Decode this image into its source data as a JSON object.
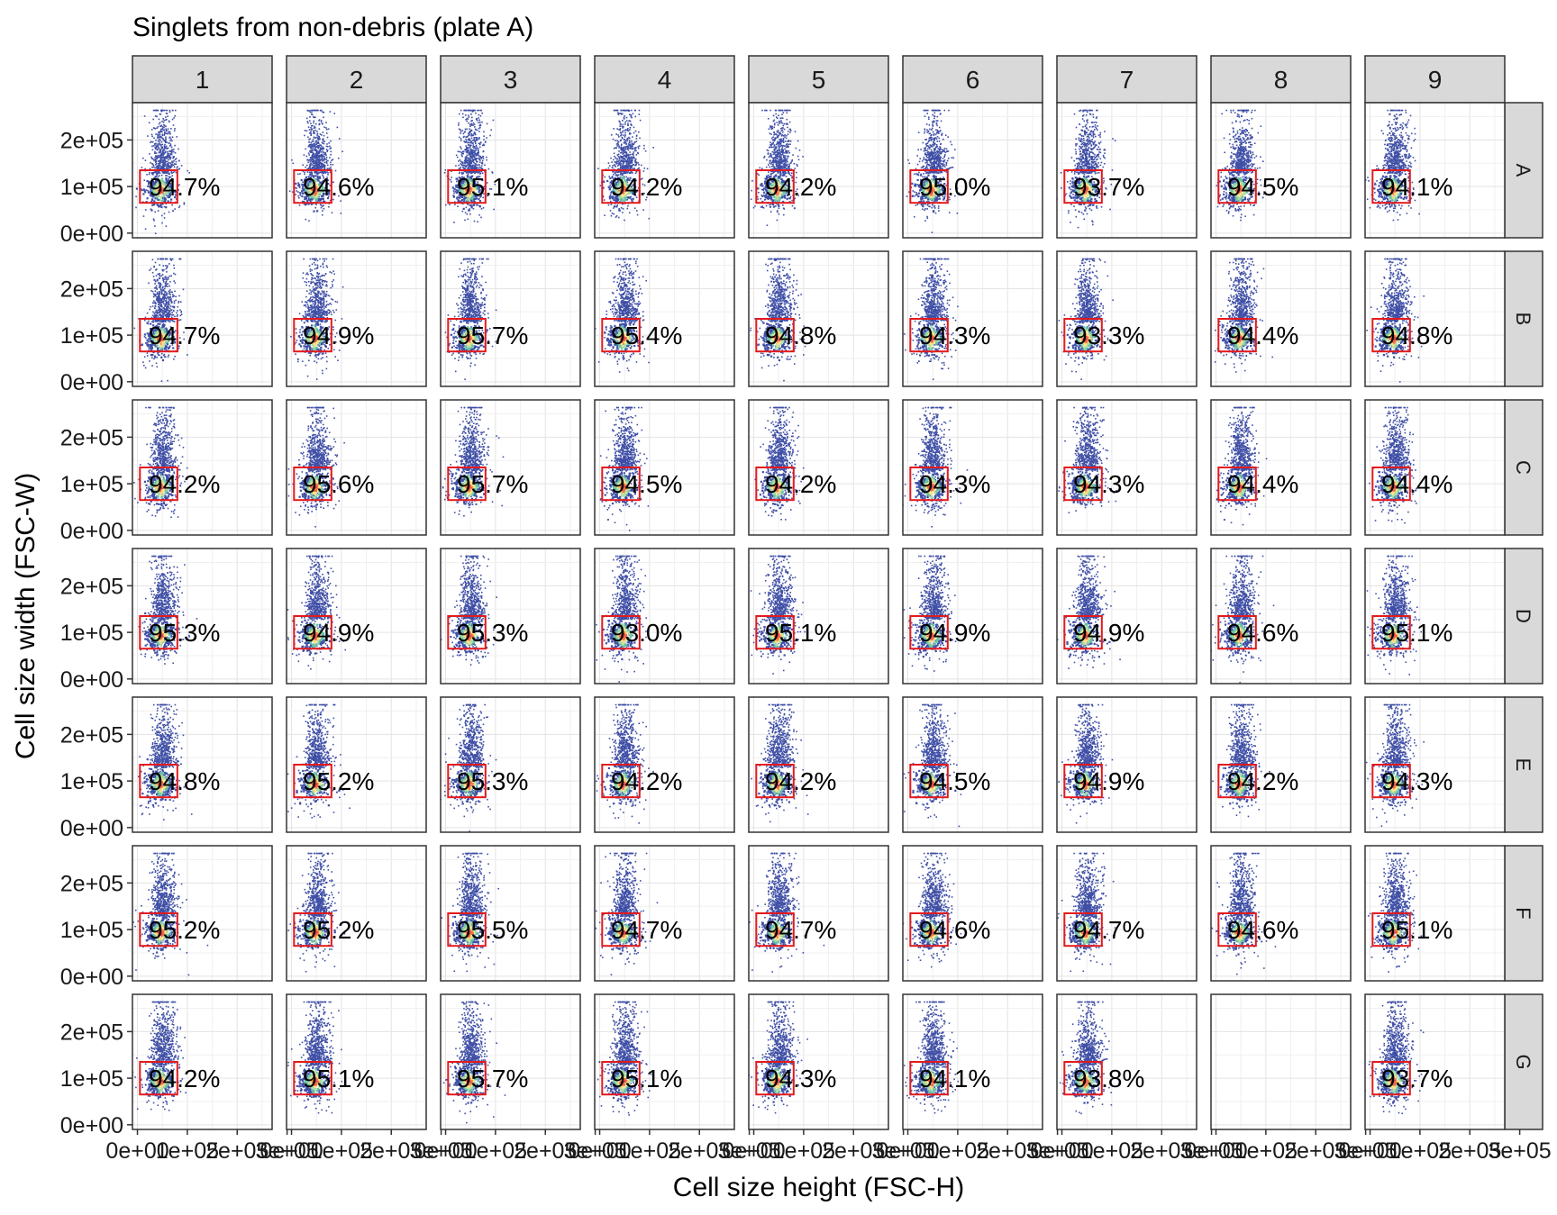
{
  "chart_data": {
    "type": "scatter",
    "title": "Singlets from non-debris (plate A)",
    "xlabel": "Cell size height (FSC-H)",
    "ylabel": "Cell size width (FSC-W)",
    "columns": [
      "1",
      "2",
      "3",
      "4",
      "5",
      "6",
      "7",
      "8",
      "9"
    ],
    "rows": [
      "A",
      "B",
      "C",
      "D",
      "E",
      "F",
      "G"
    ],
    "x_ticks": [
      "0e+00",
      "1e+05",
      "2e+05",
      "3e+05"
    ],
    "y_ticks": [
      "0e+00",
      "1e+05",
      "2e+05"
    ],
    "xlim": [
      -10000,
      270000
    ],
    "ylim": [
      -10000,
      280000
    ],
    "gate": {
      "x": [
        5000,
        80000
      ],
      "y": [
        65000,
        135000
      ],
      "color": "#e41a1c"
    },
    "point_color": "#3f4fa6",
    "density_palette": [
      "#3f4fa6",
      "#66c2a5",
      "#abdda4",
      "#fee08b",
      "#f46d43",
      "#d53e4f"
    ],
    "grid": true,
    "panels": [
      {
        "row": "A",
        "col": "1",
        "label": "94.7%"
      },
      {
        "row": "A",
        "col": "2",
        "label": "94.6%"
      },
      {
        "row": "A",
        "col": "3",
        "label": "95.1%"
      },
      {
        "row": "A",
        "col": "4",
        "label": "94.2%"
      },
      {
        "row": "A",
        "col": "5",
        "label": "94.2%"
      },
      {
        "row": "A",
        "col": "6",
        "label": "95.0%"
      },
      {
        "row": "A",
        "col": "7",
        "label": "93.7%"
      },
      {
        "row": "A",
        "col": "8",
        "label": "94.5%"
      },
      {
        "row": "A",
        "col": "9",
        "label": "94.1%"
      },
      {
        "row": "B",
        "col": "1",
        "label": "94.7%"
      },
      {
        "row": "B",
        "col": "2",
        "label": "94.9%"
      },
      {
        "row": "B",
        "col": "3",
        "label": "95.7%"
      },
      {
        "row": "B",
        "col": "4",
        "label": "95.4%"
      },
      {
        "row": "B",
        "col": "5",
        "label": "94.8%"
      },
      {
        "row": "B",
        "col": "6",
        "label": "94.3%"
      },
      {
        "row": "B",
        "col": "7",
        "label": "93.3%"
      },
      {
        "row": "B",
        "col": "8",
        "label": "94.4%"
      },
      {
        "row": "B",
        "col": "9",
        "label": "94.8%"
      },
      {
        "row": "C",
        "col": "1",
        "label": "94.2%"
      },
      {
        "row": "C",
        "col": "2",
        "label": "95.6%"
      },
      {
        "row": "C",
        "col": "3",
        "label": "95.7%"
      },
      {
        "row": "C",
        "col": "4",
        "label": "94.5%"
      },
      {
        "row": "C",
        "col": "5",
        "label": "94.2%"
      },
      {
        "row": "C",
        "col": "6",
        "label": "94.3%"
      },
      {
        "row": "C",
        "col": "7",
        "label": "94.3%"
      },
      {
        "row": "C",
        "col": "8",
        "label": "94.4%"
      },
      {
        "row": "C",
        "col": "9",
        "label": "94.4%"
      },
      {
        "row": "D",
        "col": "1",
        "label": "95.3%"
      },
      {
        "row": "D",
        "col": "2",
        "label": "94.9%"
      },
      {
        "row": "D",
        "col": "3",
        "label": "95.3%"
      },
      {
        "row": "D",
        "col": "4",
        "label": "93.0%"
      },
      {
        "row": "D",
        "col": "5",
        "label": "95.1%"
      },
      {
        "row": "D",
        "col": "6",
        "label": "94.9%"
      },
      {
        "row": "D",
        "col": "7",
        "label": "94.9%"
      },
      {
        "row": "D",
        "col": "8",
        "label": "94.6%"
      },
      {
        "row": "D",
        "col": "9",
        "label": "95.1%"
      },
      {
        "row": "E",
        "col": "1",
        "label": "94.8%"
      },
      {
        "row": "E",
        "col": "2",
        "label": "95.2%"
      },
      {
        "row": "E",
        "col": "3",
        "label": "95.3%"
      },
      {
        "row": "E",
        "col": "4",
        "label": "94.2%"
      },
      {
        "row": "E",
        "col": "5",
        "label": "94.2%"
      },
      {
        "row": "E",
        "col": "6",
        "label": "94.5%"
      },
      {
        "row": "E",
        "col": "7",
        "label": "94.9%"
      },
      {
        "row": "E",
        "col": "8",
        "label": "94.2%"
      },
      {
        "row": "E",
        "col": "9",
        "label": "94.3%"
      },
      {
        "row": "F",
        "col": "1",
        "label": "95.2%"
      },
      {
        "row": "F",
        "col": "2",
        "label": "95.2%"
      },
      {
        "row": "F",
        "col": "3",
        "label": "95.5%"
      },
      {
        "row": "F",
        "col": "4",
        "label": "94.7%"
      },
      {
        "row": "F",
        "col": "5",
        "label": "94.7%"
      },
      {
        "row": "F",
        "col": "6",
        "label": "94.6%"
      },
      {
        "row": "F",
        "col": "7",
        "label": "94.7%"
      },
      {
        "row": "F",
        "col": "8",
        "label": "94.6%"
      },
      {
        "row": "F",
        "col": "9",
        "label": "95.1%"
      },
      {
        "row": "G",
        "col": "1",
        "label": "94.2%"
      },
      {
        "row": "G",
        "col": "2",
        "label": "95.1%"
      },
      {
        "row": "G",
        "col": "3",
        "label": "95.7%"
      },
      {
        "row": "G",
        "col": "4",
        "label": "95.1%"
      },
      {
        "row": "G",
        "col": "5",
        "label": "94.3%"
      },
      {
        "row": "G",
        "col": "6",
        "label": "94.1%"
      },
      {
        "row": "G",
        "col": "7",
        "label": "93.8%"
      },
      {
        "row": "G",
        "col": "8",
        "label": null
      },
      {
        "row": "G",
        "col": "9",
        "label": "93.7%"
      }
    ]
  }
}
